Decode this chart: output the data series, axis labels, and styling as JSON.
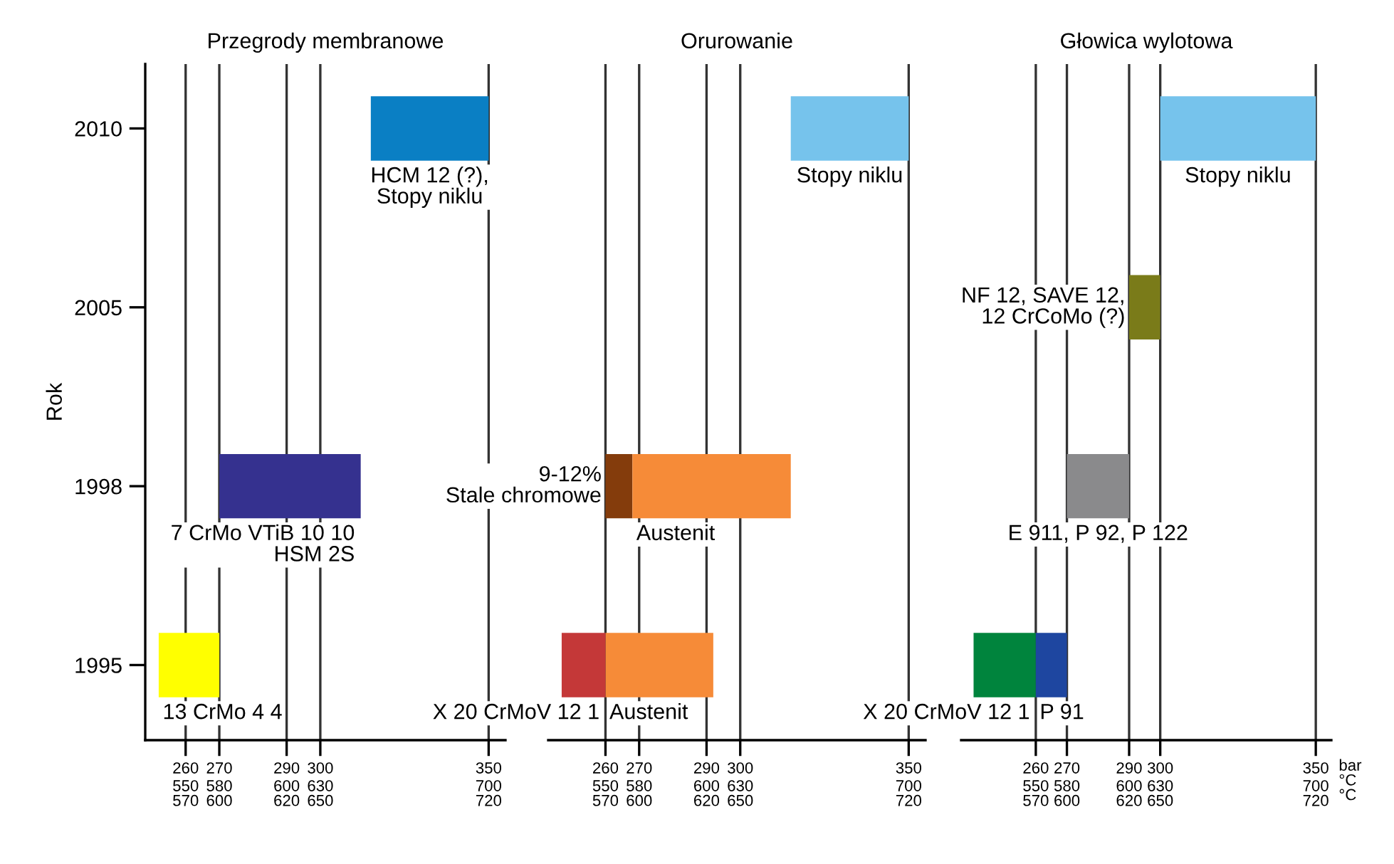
{
  "chart_data": [
    {
      "type": "bar",
      "orientation": "horizontal",
      "title": "Przegrody membranowe",
      "ylabel": "Rok",
      "categories": [
        "2010",
        "2005",
        "1998",
        "1995"
      ],
      "series": [
        {
          "name": "HCM 12 (?),\nStopy niklu",
          "color": "#0a7fc4",
          "values": [
            35,
            null,
            null,
            null
          ],
          "base": [
            315,
            null,
            null,
            null
          ]
        },
        {
          "name": "7 CrMo VTiB 10 10\nHSM 2S",
          "color": "#35318f",
          "values": [
            null,
            null,
            42,
            null
          ],
          "base": [
            null,
            null,
            270,
            null
          ]
        },
        {
          "name": "13 CrMo 4 4",
          "color": "#ffff00",
          "values": [
            null,
            null,
            null,
            18
          ],
          "base": [
            null,
            null,
            null,
            252
          ]
        }
      ],
      "xlim": [
        248,
        355
      ],
      "xticks": [
        260,
        270,
        290,
        300,
        350
      ],
      "grid": "x",
      "annotations": [
        "550\n570",
        "580\n600",
        "600\n620",
        "630\n650",
        "700\n720"
      ]
    },
    {
      "type": "bar",
      "orientation": "horizontal",
      "title": "Orurowanie",
      "categories": [
        "2010",
        "2005",
        "1998",
        "1995"
      ],
      "tick_labels": "x",
      "series": [
        {
          "name": "Stopy niklu",
          "color": "#76c3ec",
          "values": [
            35,
            null,
            null,
            null
          ],
          "base": [
            315,
            null,
            null,
            null
          ]
        },
        {
          "name": "9-12%\nStale chromowe",
          "color": "#843c0c",
          "values": [
            null,
            null,
            8,
            null
          ],
          "base": [
            null,
            null,
            260,
            null
          ]
        },
        {
          "name": "Austenit",
          "color": "#f68b38",
          "values": [
            null,
            null,
            47,
            null
          ],
          "base": [
            null,
            null,
            268,
            null
          ]
        },
        {
          "name": "Austenit",
          "color": "#f68b38",
          "values": [
            null,
            null,
            null,
            32
          ],
          "base": [
            null,
            null,
            null,
            260
          ]
        },
        {
          "name": "X 20 CrMoV 12 1",
          "color": "#c43838",
          "values": [
            null,
            null,
            null,
            13
          ],
          "base": [
            null,
            null,
            null,
            247
          ]
        }
      ],
      "xlim": [
        243,
        355
      ],
      "xticks": [
        260,
        270,
        290,
        300,
        350
      ],
      "grid": "x",
      "annotations": [
        "550\n570",
        "580\n600",
        "600\n620",
        "630\n650",
        "700\n720"
      ]
    },
    {
      "type": "bar",
      "orientation": "horizontal",
      "title": "Głowica wylotowa",
      "xlabel": "bar\n°C\n°C",
      "categories": [
        "2010",
        "2005",
        "1998",
        "1995"
      ],
      "tick_labels": "x",
      "series": [
        {
          "name": "Stopy niklu",
          "color": "#76c3ec",
          "values": [
            50,
            null,
            null,
            null
          ],
          "base": [
            300,
            null,
            null,
            null
          ]
        },
        {
          "name": "NF 12, SAVE 12,\n12 CrCoMo (?)",
          "color": "#7a7b19",
          "values": [
            null,
            10,
            null,
            null
          ],
          "base": [
            null,
            290,
            null,
            null
          ]
        },
        {
          "name": "E 911, P 92, P 122",
          "color": "#8a8a8c",
          "values": [
            null,
            null,
            20,
            null
          ],
          "base": [
            null,
            null,
            270,
            null
          ]
        },
        {
          "name": "X 20 CrMoV 12 1",
          "color": "#00843d",
          "values": [
            null,
            null,
            null,
            20
          ],
          "base": [
            null,
            null,
            null,
            240
          ]
        },
        {
          "name": "P 91",
          "color": "#1e46a0",
          "values": [
            null,
            null,
            null,
            10
          ],
          "base": [
            null,
            null,
            null,
            260
          ]
        }
      ],
      "xlim": [
        236,
        355
      ],
      "xticks": [
        260,
        270,
        290,
        300,
        350
      ],
      "grid": "x",
      "annotations": [
        "550\n570",
        "580\n600",
        "600\n620",
        "630\n650",
        "700\n720"
      ]
    }
  ]
}
